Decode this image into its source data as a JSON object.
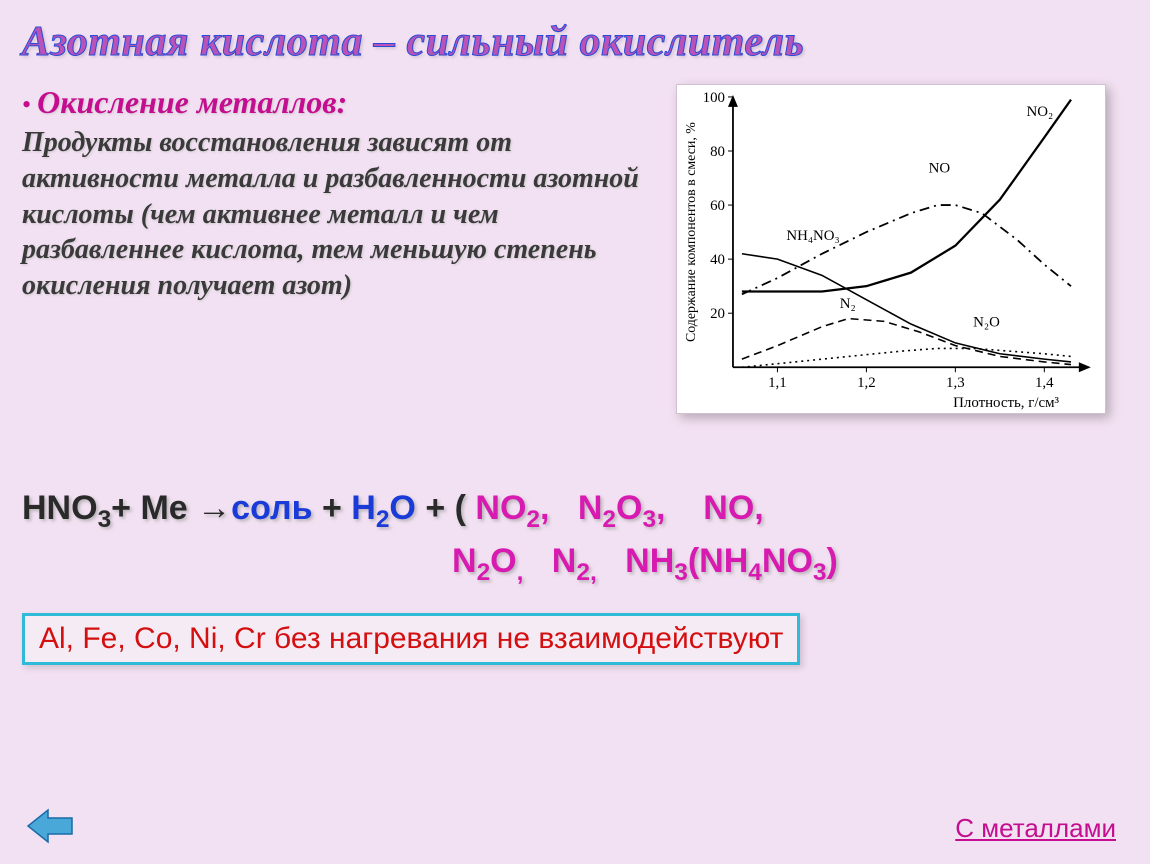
{
  "title": "Азотная кислота – сильный окислитель",
  "subtitle": "Окисление металлов:",
  "body": "Продукты восстановления зависят от активности металла и разбавленности азотной кислоты (чем активнее металл и чем разбавленнее кислота, тем меньшую степень окисления получает азот)",
  "equation": {
    "lhs": "HNO",
    "lhs_sub": "3",
    "plus_me": "+ Ме →",
    "salt": "соль",
    "plus": " + ",
    "h2o": "H",
    "h2o_sub": "2",
    "h2o_o": "O",
    "plus2": " +   (",
    "p1": "NO",
    "p1s": "2",
    "p2": "N",
    "p2s": "2",
    "p2b": "O",
    "p2bs": "3",
    "p3": "NO",
    "p4": "N",
    "p4s": "2",
    "p4b": "O",
    "p5": "N",
    "p5s": "2",
    "p6": "NH",
    "p6s": "3",
    "p7a": "(NH",
    "p7as": "4",
    "p7b": "NO",
    "p7bs": "3",
    "p7c": ")"
  },
  "note": "Al, Fe, Co, Ni, Cr без нагревания не взаимодействуют",
  "link": "С металлами",
  "chart": {
    "background": "#ffffff",
    "axis_color": "#000000",
    "xlim": [
      1.05,
      1.45
    ],
    "ylim": [
      0,
      100
    ],
    "xticks": [
      "1,1",
      "1,2",
      "1,3",
      "1,4"
    ],
    "xtick_vals": [
      1.1,
      1.2,
      1.3,
      1.4
    ],
    "yticks": [
      20,
      40,
      60,
      80,
      100
    ],
    "xlabel": "Плотность, г/см³",
    "ylabel": "Содержание компонентов в смеси, %",
    "series": {
      "NO2": {
        "label": "NO₂",
        "lx": 1.38,
        "ly": 93,
        "pts": [
          [
            1.06,
            28
          ],
          [
            1.1,
            28
          ],
          [
            1.15,
            28
          ],
          [
            1.2,
            30
          ],
          [
            1.25,
            35
          ],
          [
            1.3,
            45
          ],
          [
            1.35,
            62
          ],
          [
            1.4,
            85
          ],
          [
            1.43,
            99
          ]
        ],
        "style": "solid",
        "width": 2.3
      },
      "NO": {
        "label": "NO",
        "lx": 1.27,
        "ly": 72,
        "pts": [
          [
            1.06,
            27
          ],
          [
            1.1,
            33
          ],
          [
            1.15,
            42
          ],
          [
            1.2,
            50
          ],
          [
            1.25,
            57
          ],
          [
            1.28,
            60
          ],
          [
            1.3,
            60
          ],
          [
            1.33,
            57
          ],
          [
            1.37,
            47
          ],
          [
            1.4,
            38
          ],
          [
            1.43,
            30
          ]
        ],
        "style": "dashdot",
        "width": 1.8
      },
      "NH4NO3": {
        "label": "NH₄NO₃",
        "lx": 1.11,
        "ly": 47,
        "pts": [
          [
            1.06,
            42
          ],
          [
            1.1,
            40
          ],
          [
            1.15,
            34
          ],
          [
            1.2,
            25
          ],
          [
            1.25,
            16
          ],
          [
            1.3,
            9
          ],
          [
            1.35,
            5
          ],
          [
            1.4,
            3
          ],
          [
            1.43,
            2
          ]
        ],
        "style": "solid",
        "width": 1.6
      },
      "N2": {
        "label": "N₂",
        "lx": 1.17,
        "ly": 22,
        "pts": [
          [
            1.06,
            3
          ],
          [
            1.1,
            8
          ],
          [
            1.15,
            15
          ],
          [
            1.18,
            18
          ],
          [
            1.22,
            17
          ],
          [
            1.26,
            13
          ],
          [
            1.3,
            8
          ],
          [
            1.35,
            4
          ],
          [
            1.4,
            2
          ],
          [
            1.43,
            1
          ]
        ],
        "style": "dash",
        "width": 1.6
      },
      "N2O": {
        "label": "N₂O",
        "lx": 1.32,
        "ly": 15,
        "pts": [
          [
            1.06,
            0
          ],
          [
            1.12,
            2
          ],
          [
            1.18,
            4
          ],
          [
            1.24,
            6
          ],
          [
            1.28,
            7
          ],
          [
            1.32,
            7
          ],
          [
            1.36,
            6
          ],
          [
            1.4,
            5
          ],
          [
            1.43,
            4
          ]
        ],
        "style": "dot",
        "width": 1.6
      }
    }
  },
  "colors": {
    "bg": "#f2e1f2",
    "title": "#b952b9",
    "title_stroke": "#2a4bd6",
    "accent_pink": "#c40d8f",
    "eq_blue": "#1a3bd8",
    "eq_pink": "#d81bb0",
    "note_border": "#2fbad8",
    "note_text": "#d40f0f",
    "nav_fill": "#4aa8d8",
    "nav_stroke": "#1a6aa8"
  },
  "fontsize": {
    "title": 42,
    "subtitle": 32,
    "body": 28,
    "equation": 34,
    "note": 30,
    "link": 26
  }
}
